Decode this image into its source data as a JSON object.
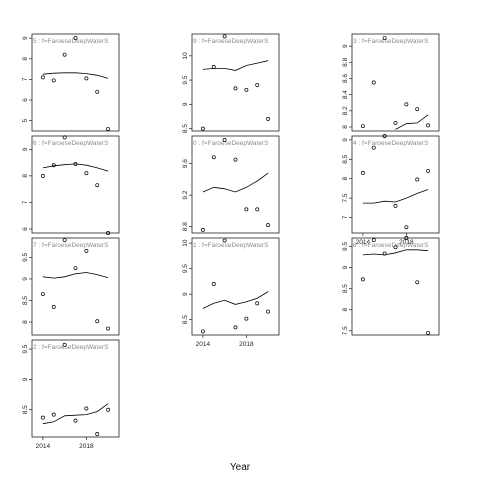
{
  "chart_data": {
    "type": "scatter",
    "layout": "trellis",
    "xlabel": "Year",
    "ylabel": "",
    "x_ticks": [
      2014,
      2018
    ],
    "panels": [
      {
        "strip": "5 : f=FaroeseDeepWaterS",
        "xlim": [
          2013,
          2021
        ],
        "ylim": [
          4.5,
          9.2
        ],
        "y_ticks": [
          5,
          6,
          7,
          8,
          9
        ],
        "points": [
          [
            2014,
            7.1
          ],
          [
            2015,
            6.95
          ],
          [
            2016,
            8.2
          ],
          [
            2017,
            9.0
          ],
          [
            2018,
            7.05
          ],
          [
            2019,
            6.4
          ],
          [
            2020,
            4.6
          ]
        ],
        "smooth": [
          [
            2014,
            7.25
          ],
          [
            2015,
            7.3
          ],
          [
            2016,
            7.32
          ],
          [
            2017,
            7.32
          ],
          [
            2018,
            7.28
          ],
          [
            2019,
            7.2
          ],
          [
            2020,
            7.05
          ]
        ]
      },
      {
        "strip": "9 : f=FaroeseDeepWaterS",
        "xlim": [
          2013,
          2021
        ],
        "ylim": [
          8.45,
          10.45
        ],
        "y_ticks": [
          8.5,
          9.0,
          9.5,
          10.0
        ],
        "points": [
          [
            2014,
            8.5
          ],
          [
            2015,
            9.77
          ],
          [
            2016,
            10.4
          ],
          [
            2017,
            9.33
          ],
          [
            2018,
            9.3
          ],
          [
            2019,
            9.4
          ],
          [
            2020,
            8.7
          ]
        ],
        "smooth": [
          [
            2014,
            9.72
          ],
          [
            2015,
            9.74
          ],
          [
            2016,
            9.74
          ],
          [
            2017,
            9.7
          ],
          [
            2018,
            9.8
          ],
          [
            2019,
            9.85
          ],
          [
            2020,
            9.9
          ]
        ]
      },
      {
        "strip": "3 : f=FaroeseDeepWaterS",
        "xlim": [
          2013,
          2021
        ],
        "ylim": [
          7.95,
          9.15
        ],
        "y_ticks": [
          8.0,
          8.2,
          8.4,
          8.6,
          8.8,
          9.0
        ],
        "points": [
          [
            2014,
            8.01
          ],
          [
            2015,
            8.55
          ],
          [
            2016,
            9.1
          ],
          [
            2017,
            8.05
          ],
          [
            2018,
            8.28
          ],
          [
            2019,
            8.22
          ],
          [
            2020,
            8.02
          ]
        ],
        "smooth": [
          [
            2017,
            7.97
          ],
          [
            2018,
            8.04
          ],
          [
            2019,
            8.05
          ],
          [
            2020,
            8.15
          ]
        ]
      },
      {
        "strip": "6 : f=FaroeseDeepWaterS",
        "xlim": [
          2013,
          2021
        ],
        "ylim": [
          5.85,
          9.5
        ],
        "y_ticks": [
          6.0,
          7.0,
          8.0,
          9.0
        ],
        "points": [
          [
            2014,
            8.0
          ],
          [
            2015,
            8.4
          ],
          [
            2016,
            9.45
          ],
          [
            2017,
            8.45
          ],
          [
            2018,
            8.1
          ],
          [
            2019,
            7.65
          ],
          [
            2020,
            5.85
          ]
        ],
        "smooth": [
          [
            2014,
            8.3
          ],
          [
            2015,
            8.38
          ],
          [
            2016,
            8.42
          ],
          [
            2017,
            8.45
          ],
          [
            2018,
            8.4
          ],
          [
            2019,
            8.3
          ],
          [
            2020,
            8.18
          ]
        ]
      },
      {
        "strip": "0 : f=FaroeseDeepWaterS",
        "xlim": [
          2013,
          2021
        ],
        "ylim": [
          8.72,
          9.95
        ],
        "y_ticks": [
          8.8,
          9.2,
          9.6
        ],
        "points": [
          [
            2014,
            8.76
          ],
          [
            2015,
            9.68
          ],
          [
            2016,
            9.9
          ],
          [
            2017,
            9.65
          ],
          [
            2018,
            9.02
          ],
          [
            2019,
            9.02
          ],
          [
            2020,
            8.82
          ]
        ],
        "smooth": [
          [
            2014,
            9.24
          ],
          [
            2015,
            9.3
          ],
          [
            2016,
            9.28
          ],
          [
            2017,
            9.24
          ],
          [
            2018,
            9.3
          ],
          [
            2019,
            9.38
          ],
          [
            2020,
            9.48
          ]
        ]
      },
      {
        "strip": "4 : f=FaroeseDeepWaterS",
        "xlim": [
          2013,
          2021
        ],
        "ylim": [
          6.6,
          9.1
        ],
        "y_ticks": [
          7.0,
          7.5,
          8.0,
          8.5,
          9.0
        ],
        "points": [
          [
            2014,
            8.15
          ],
          [
            2015,
            8.8
          ],
          [
            2016,
            9.1
          ],
          [
            2017,
            7.3
          ],
          [
            2018,
            6.75
          ],
          [
            2019,
            7.98
          ],
          [
            2020,
            8.2
          ]
        ],
        "smooth": [
          [
            2014,
            7.37
          ],
          [
            2015,
            7.37
          ],
          [
            2016,
            7.42
          ],
          [
            2017,
            7.4
          ],
          [
            2018,
            7.5
          ],
          [
            2019,
            7.62
          ],
          [
            2020,
            7.72
          ]
        ]
      },
      {
        "strip": "7 : f=FaroeseDeepWaterS",
        "xlim": [
          2013,
          2021
        ],
        "ylim": [
          7.7,
          9.95
        ],
        "y_ticks": [
          8.0,
          8.5,
          9.0,
          9.5
        ],
        "points": [
          [
            2014,
            8.65
          ],
          [
            2015,
            8.35
          ],
          [
            2016,
            9.9
          ],
          [
            2017,
            9.25
          ],
          [
            2018,
            9.65
          ],
          [
            2019,
            8.02
          ],
          [
            2020,
            7.85
          ]
        ],
        "smooth": [
          [
            2014,
            9.05
          ],
          [
            2015,
            9.02
          ],
          [
            2016,
            9.05
          ],
          [
            2017,
            9.12
          ],
          [
            2018,
            9.15
          ],
          [
            2019,
            9.1
          ],
          [
            2020,
            9.03
          ]
        ]
      },
      {
        "strip": "1 : f=FaroeseDeepWaterS",
        "xlim": [
          2013,
          2021
        ],
        "ylim": [
          8.2,
          10.1
        ],
        "y_ticks": [
          8.5,
          9.0,
          9.5,
          10.0
        ],
        "points": [
          [
            2014,
            8.27
          ],
          [
            2015,
            9.2
          ],
          [
            2016,
            10.05
          ],
          [
            2017,
            8.35
          ],
          [
            2018,
            8.52
          ],
          [
            2019,
            8.82
          ],
          [
            2020,
            8.66
          ]
        ],
        "smooth": [
          [
            2014,
            8.72
          ],
          [
            2015,
            8.82
          ],
          [
            2016,
            8.88
          ],
          [
            2017,
            8.8
          ],
          [
            2018,
            8.85
          ],
          [
            2019,
            8.92
          ],
          [
            2020,
            9.05
          ]
        ]
      },
      {
        "strip": "8 : f=FaroeseDeepWaterS",
        "xlim": [
          2013,
          2021
        ],
        "ylim": [
          7.4,
          9.7
        ],
        "y_ticks": [
          7.5,
          8.0,
          8.5,
          9.0,
          9.5
        ],
        "points": [
          [
            2014,
            8.72
          ],
          [
            2015,
            9.65
          ],
          [
            2016,
            9.33
          ],
          [
            2017,
            9.48
          ],
          [
            2018,
            9.7
          ],
          [
            2019,
            8.65
          ],
          [
            2020,
            7.45
          ]
        ],
        "smooth": [
          [
            2014,
            9.3
          ],
          [
            2015,
            9.32
          ],
          [
            2016,
            9.3
          ],
          [
            2017,
            9.35
          ],
          [
            2018,
            9.42
          ],
          [
            2019,
            9.42
          ],
          [
            2020,
            9.4
          ]
        ]
      },
      {
        "strip": "2 : f=FaroeseDeepWaterS",
        "xlim": [
          2013,
          2021
        ],
        "ylim": [
          8.05,
          9.65
        ],
        "y_ticks": [
          8.5,
          9.0,
          9.5
        ],
        "points": [
          [
            2014,
            8.37
          ],
          [
            2015,
            8.42
          ],
          [
            2016,
            9.57
          ],
          [
            2017,
            8.32
          ],
          [
            2018,
            8.52
          ],
          [
            2019,
            8.1
          ],
          [
            2020,
            8.5
          ]
        ],
        "smooth": [
          [
            2014,
            8.27
          ],
          [
            2015,
            8.3
          ],
          [
            2016,
            8.4
          ],
          [
            2017,
            8.41
          ],
          [
            2018,
            8.42
          ],
          [
            2019,
            8.47
          ],
          [
            2020,
            8.6
          ]
        ]
      }
    ]
  }
}
